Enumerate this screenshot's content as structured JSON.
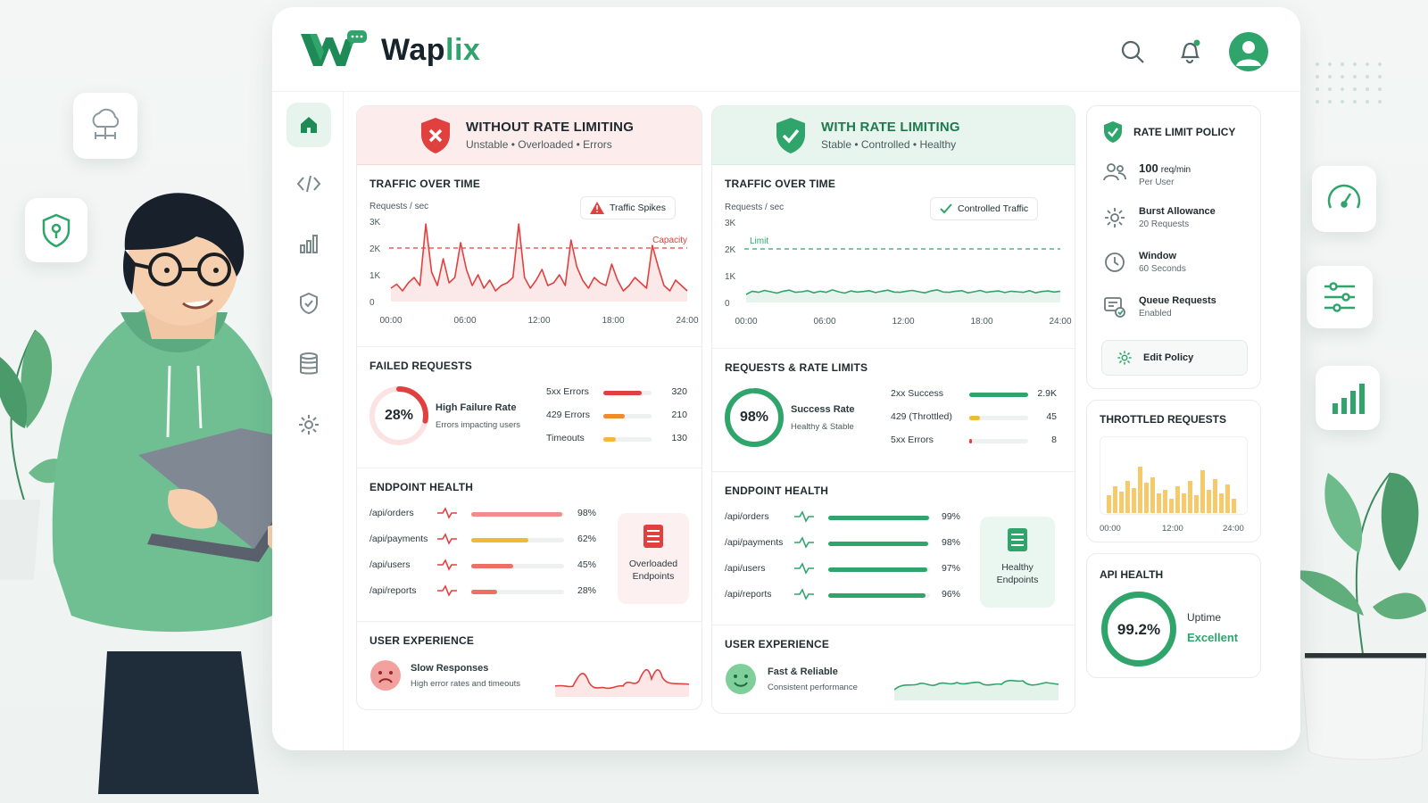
{
  "brand": {
    "name_main": "Wap",
    "name_accent": "lix",
    "accent_color": "#2fa56b",
    "danger_color": "#e0413f",
    "warning_color": "#f0b93a",
    "orange_color": "#f08a2e"
  },
  "header": {
    "icons": [
      "search-icon",
      "bell-icon",
      "user-avatar"
    ]
  },
  "sidebar": {
    "items": [
      "home-icon",
      "code-icon",
      "bar-chart-icon",
      "shield-icon",
      "database-icon",
      "gear-icon"
    ]
  },
  "without": {
    "title": "WITHOUT RATE LIMITING",
    "subtitle": "Unstable • Overloaded • Errors",
    "traffic": {
      "title": "TRAFFIC OVER TIME",
      "unit": "Requests / sec",
      "badge": "Traffic Spikes",
      "capacity_label": "Capacity",
      "y_ticks": [
        "3K",
        "2K",
        "1K",
        "0"
      ],
      "x_ticks": [
        "00:00",
        "06:00",
        "12:00",
        "18:00",
        "24:00"
      ]
    },
    "failed": {
      "title": "FAILED REQUESTS",
      "percent": "28%",
      "percent_value": 28,
      "label": "High Failure Rate",
      "sub": "Errors impacting users",
      "rows": [
        {
          "label": "5xx Errors",
          "value": "320",
          "fill": 0.8
        },
        {
          "label": "429 Errors",
          "value": "210",
          "fill": 0.45
        },
        {
          "label": "Timeouts",
          "value": "130",
          "fill": 0.25
        }
      ]
    },
    "endpoints": {
      "title": "ENDPOINT HEALTH",
      "rows": [
        {
          "path": "/api/orders",
          "value": "98%",
          "fill": 0.98
        },
        {
          "path": "/api/payments",
          "value": "62%",
          "fill": 0.62
        },
        {
          "path": "/api/users",
          "value": "45%",
          "fill": 0.45
        },
        {
          "path": "/api/reports",
          "value": "28%",
          "fill": 0.28
        }
      ],
      "status_line1": "Overloaded",
      "status_line2": "Endpoints"
    },
    "ux": {
      "title": "USER EXPERIENCE",
      "label": "Slow Responses",
      "sub": "High error rates and timeouts"
    }
  },
  "with": {
    "title": "WITH RATE LIMITING",
    "subtitle": "Stable • Controlled • Healthy",
    "traffic": {
      "title": "TRAFFIC OVER TIME",
      "unit": "Requests / sec",
      "badge": "Controlled Traffic",
      "limit_label": "Limit",
      "y_ticks": [
        "3K",
        "2K",
        "1K",
        "0"
      ],
      "x_ticks": [
        "00:00",
        "06:00",
        "12:00",
        "18:00",
        "24:00"
      ]
    },
    "requests": {
      "title": "REQUESTS & RATE LIMITS",
      "percent": "98%",
      "percent_value": 98,
      "label": "Success Rate",
      "sub": "Healthy & Stable",
      "rows": [
        {
          "label": "2xx Success",
          "value": "2.9K",
          "fill": 1.0
        },
        {
          "label": "429 (Throttled)",
          "value": "45",
          "fill": 0.18
        },
        {
          "label": "5xx Errors",
          "value": "8",
          "fill": 0.05
        }
      ]
    },
    "endpoints": {
      "title": "ENDPOINT HEALTH",
      "rows": [
        {
          "path": "/api/orders",
          "value": "99%",
          "fill": 0.99
        },
        {
          "path": "/api/payments",
          "value": "98%",
          "fill": 0.98
        },
        {
          "path": "/api/users",
          "value": "97%",
          "fill": 0.97
        },
        {
          "path": "/api/reports",
          "value": "96%",
          "fill": 0.96
        }
      ],
      "status_line1": "Healthy",
      "status_line2": "Endpoints"
    },
    "ux": {
      "title": "USER EXPERIENCE",
      "label": "Fast & Reliable",
      "sub": "Consistent performance"
    }
  },
  "policy": {
    "title": "RATE LIMIT POLICY",
    "items": [
      {
        "icon": "users-icon",
        "main_num": "100",
        "main_unit": "req/min",
        "sub": "Per User"
      },
      {
        "icon": "gear-icon",
        "main": "Burst Allowance",
        "sub": "20 Requests"
      },
      {
        "icon": "clock-icon",
        "main": "Window",
        "sub": "60 Seconds"
      },
      {
        "icon": "queue-icon",
        "main": "Queue Requests",
        "sub": "Enabled"
      }
    ],
    "edit_label": "Edit Policy"
  },
  "throttled": {
    "title": "THROTTLED REQUESTS",
    "x_ticks": [
      "00:00",
      "12:00",
      "24:00"
    ]
  },
  "api_health": {
    "title": "API HEALTH",
    "percent": "99.2%",
    "percent_value": 99.2,
    "label": "Uptime",
    "status": "Excellent"
  }
}
